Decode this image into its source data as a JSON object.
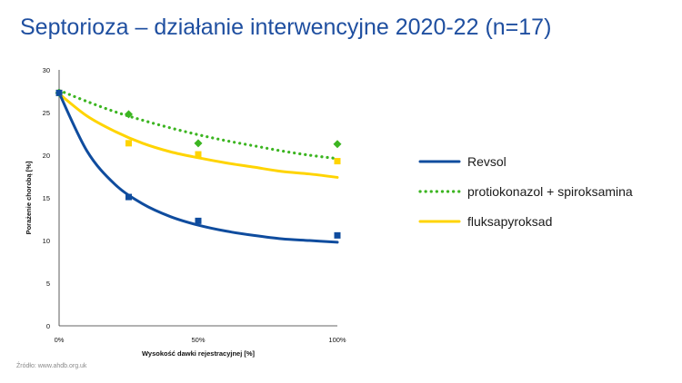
{
  "slide": {
    "title": "Septorioza – działanie interwencyjne 2020-22 (n=17)",
    "source": "Źródło:  www.ahdb.org.uk"
  },
  "chart_data": {
    "type": "scatter",
    "title": "Septorioza – działanie interwencyjne 2020-22 (n=17)",
    "xlabel": "Wysokość dawki rejestracyjnej [%]",
    "ylabel": "Porażenie chorobą [%]",
    "x_ticks": [
      0,
      50,
      100
    ],
    "x_tick_labels": [
      "0%",
      "50%",
      "100%"
    ],
    "y_ticks": [
      0,
      5,
      10,
      15,
      20,
      25,
      30
    ],
    "xlim": [
      0,
      100
    ],
    "ylim": [
      0,
      30
    ],
    "grid": false,
    "legend_position": "right",
    "series": [
      {
        "name": "Revsol",
        "color": "#0f4c9e",
        "line_style": "solid",
        "marker": "square",
        "points": [
          [
            0,
            27.3
          ],
          [
            25,
            15.1
          ],
          [
            50,
            12.3
          ],
          [
            100,
            10.6
          ]
        ],
        "fit": [
          [
            0,
            27.3
          ],
          [
            10,
            20.5
          ],
          [
            20,
            16.6
          ],
          [
            30,
            14.3
          ],
          [
            40,
            12.8
          ],
          [
            50,
            11.8
          ],
          [
            60,
            11.1
          ],
          [
            70,
            10.6
          ],
          [
            80,
            10.2
          ],
          [
            90,
            10.0
          ],
          [
            100,
            9.8
          ]
        ]
      },
      {
        "name": "protiokonazol + spiroksamina",
        "color": "#3cb521",
        "line_style": "dotted",
        "marker": "diamond",
        "points": [
          [
            0,
            27.3
          ],
          [
            25,
            24.8
          ],
          [
            50,
            21.4
          ],
          [
            100,
            21.3
          ]
        ],
        "fit": [
          [
            0,
            27.6
          ],
          [
            10,
            26.3
          ],
          [
            20,
            25.1
          ],
          [
            30,
            24.1
          ],
          [
            40,
            23.2
          ],
          [
            50,
            22.4
          ],
          [
            60,
            21.7
          ],
          [
            70,
            21.1
          ],
          [
            80,
            20.5
          ],
          [
            90,
            20.0
          ],
          [
            100,
            19.6
          ]
        ]
      },
      {
        "name": "fluksapyroksad",
        "color": "#ffd400",
        "line_style": "solid",
        "marker": "square",
        "points": [
          [
            0,
            27.3
          ],
          [
            25,
            21.4
          ],
          [
            50,
            20.1
          ],
          [
            100,
            19.3
          ]
        ],
        "fit": [
          [
            0,
            27.2
          ],
          [
            10,
            24.6
          ],
          [
            20,
            22.8
          ],
          [
            30,
            21.4
          ],
          [
            40,
            20.4
          ],
          [
            50,
            19.7
          ],
          [
            60,
            19.1
          ],
          [
            70,
            18.6
          ],
          [
            80,
            18.1
          ],
          [
            90,
            17.8
          ],
          [
            100,
            17.4
          ]
        ]
      }
    ]
  }
}
